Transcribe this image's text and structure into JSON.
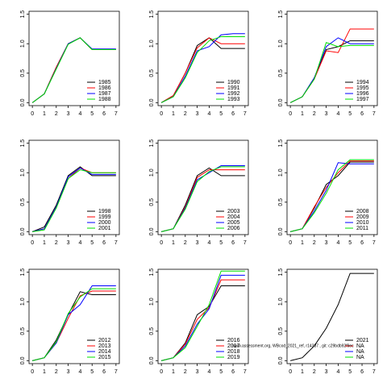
{
  "chart_data": [
    {
      "type": "line",
      "x": [
        0,
        1,
        2,
        3,
        4,
        5,
        6,
        7
      ],
      "xlim": [
        -0.28,
        7.28
      ],
      "ylim": [
        -0.05,
        1.55
      ],
      "xticks": [
        0,
        1,
        2,
        3,
        4,
        5,
        6,
        7
      ],
      "yticks": [
        {
          "value": 0,
          "label": "0.0"
        },
        0.5,
        {
          "value": 1,
          "label": "1.0"
        },
        1.5
      ],
      "legend": "bottomright",
      "series": [
        {
          "name": "1985",
          "color": "#000000",
          "values": [
            0,
            0.15,
            0.6,
            1.0,
            1.1,
            0.9,
            0.9,
            0.9
          ]
        },
        {
          "name": "1986",
          "color": "#ff0000",
          "values": [
            0,
            0.15,
            0.6,
            1.0,
            1.1,
            0.9,
            0.9,
            0.9
          ]
        },
        {
          "name": "1987",
          "color": "#0000ff",
          "values": [
            0,
            0.15,
            0.58,
            1.0,
            1.1,
            0.91,
            0.91,
            0.91
          ]
        },
        {
          "name": "1988",
          "color": "#00e000",
          "values": [
            0,
            0.15,
            0.57,
            0.99,
            1.1,
            0.9,
            0.9,
            0.9
          ]
        }
      ]
    },
    {
      "type": "line",
      "x": [
        0,
        1,
        2,
        3,
        4,
        5,
        6,
        7
      ],
      "xlim": [
        -0.28,
        7.28
      ],
      "ylim": [
        -0.05,
        1.55
      ],
      "xticks": [
        0,
        1,
        2,
        3,
        4,
        5,
        6,
        7
      ],
      "yticks": [
        {
          "value": 0,
          "label": "0.0"
        },
        0.5,
        {
          "value": 1,
          "label": "1.0"
        },
        1.5
      ],
      "legend": "bottomright",
      "series": [
        {
          "name": "1990",
          "color": "#000000",
          "values": [
            0,
            0.12,
            0.5,
            0.97,
            1.1,
            0.92,
            0.92,
            0.92
          ]
        },
        {
          "name": "1991",
          "color": "#ff0000",
          "values": [
            0,
            0.12,
            0.5,
            0.93,
            1.1,
            1.0,
            1.0,
            1.0
          ]
        },
        {
          "name": "1992",
          "color": "#0000ff",
          "values": [
            0,
            0.1,
            0.45,
            0.88,
            0.95,
            1.15,
            1.17,
            1.17
          ]
        },
        {
          "name": "1993",
          "color": "#00e000",
          "values": [
            0,
            0.1,
            0.42,
            0.85,
            1.05,
            1.12,
            1.12,
            1.12
          ]
        }
      ]
    },
    {
      "type": "line",
      "x": [
        0,
        1,
        2,
        3,
        4,
        5,
        6,
        7
      ],
      "xlim": [
        -0.28,
        7.28
      ],
      "ylim": [
        -0.05,
        1.55
      ],
      "xticks": [
        0,
        1,
        2,
        3,
        4,
        5,
        6,
        7
      ],
      "yticks": [
        {
          "value": 0,
          "label": "0.0"
        },
        0.5,
        {
          "value": 1,
          "label": "1.0"
        },
        1.5
      ],
      "legend": "bottomright",
      "series": [
        {
          "name": "1994",
          "color": "#000000",
          "values": [
            0,
            0.1,
            0.42,
            0.9,
            0.95,
            1.05,
            1.05,
            1.05
          ]
        },
        {
          "name": "1995",
          "color": "#ff0000",
          "values": [
            0,
            0.1,
            0.4,
            0.88,
            0.85,
            1.25,
            1.25,
            1.25
          ]
        },
        {
          "name": "1996",
          "color": "#0000ff",
          "values": [
            0,
            0.1,
            0.42,
            0.95,
            1.1,
            1.0,
            1.0,
            1.0
          ]
        },
        {
          "name": "1997",
          "color": "#00e000",
          "values": [
            0,
            0.1,
            0.4,
            1.02,
            0.95,
            0.97,
            0.97,
            0.97
          ]
        }
      ]
    },
    {
      "type": "line",
      "x": [
        0,
        1,
        2,
        3,
        4,
        5,
        6,
        7
      ],
      "xlim": [
        -0.28,
        7.28
      ],
      "ylim": [
        -0.05,
        1.55
      ],
      "xticks": [
        0,
        1,
        2,
        3,
        4,
        5,
        6,
        7
      ],
      "yticks": [
        {
          "value": 0,
          "label": "0.0"
        },
        0.5,
        {
          "value": 1,
          "label": "1.0"
        },
        1.5
      ],
      "legend": "bottomright",
      "series": [
        {
          "name": "1998",
          "color": "#000000",
          "values": [
            0,
            0.08,
            0.45,
            0.95,
            1.1,
            0.95,
            0.95,
            0.95
          ]
        },
        {
          "name": "1999",
          "color": "#ff0000",
          "values": [
            0,
            0.05,
            0.42,
            0.9,
            1.08,
            1.0,
            1.0,
            1.0
          ]
        },
        {
          "name": "2000",
          "color": "#0000ff",
          "values": [
            0,
            0.05,
            0.42,
            0.93,
            1.08,
            0.97,
            0.97,
            0.97
          ]
        },
        {
          "name": "2001",
          "color": "#00e000",
          "values": [
            0,
            0.03,
            0.4,
            0.9,
            1.05,
            1.0,
            1.0,
            1.0
          ]
        }
      ]
    },
    {
      "type": "line",
      "x": [
        0,
        1,
        2,
        3,
        4,
        5,
        6,
        7
      ],
      "xlim": [
        -0.28,
        7.28
      ],
      "ylim": [
        -0.05,
        1.55
      ],
      "xticks": [
        0,
        1,
        2,
        3,
        4,
        5,
        6,
        7
      ],
      "yticks": [
        {
          "value": 0,
          "label": "0.0"
        },
        0.5,
        {
          "value": 1,
          "label": "1.0"
        },
        1.5
      ],
      "legend": "bottomright",
      "series": [
        {
          "name": "2003",
          "color": "#000000",
          "values": [
            0,
            0.05,
            0.45,
            0.95,
            1.08,
            0.95,
            0.95,
            0.95
          ]
        },
        {
          "name": "2004",
          "color": "#ff0000",
          "values": [
            0,
            0.05,
            0.42,
            0.92,
            1.05,
            1.05,
            1.05,
            1.05
          ]
        },
        {
          "name": "2005",
          "color": "#0000ff",
          "values": [
            0,
            0.05,
            0.4,
            0.88,
            1.0,
            1.12,
            1.12,
            1.12
          ]
        },
        {
          "name": "2006",
          "color": "#00e000",
          "values": [
            0,
            0.05,
            0.38,
            0.85,
            1.02,
            1.1,
            1.1,
            1.1
          ]
        }
      ]
    },
    {
      "type": "line",
      "x": [
        0,
        1,
        2,
        3,
        4,
        5,
        6,
        7
      ],
      "xlim": [
        -0.28,
        7.28
      ],
      "ylim": [
        -0.05,
        1.55
      ],
      "xticks": [
        0,
        1,
        2,
        3,
        4,
        5,
        6,
        7
      ],
      "yticks": [
        {
          "value": 0,
          "label": "0.0"
        },
        0.5,
        {
          "value": 1,
          "label": "1.0"
        },
        1.5
      ],
      "legend": "bottomright",
      "series": [
        {
          "name": "2008",
          "color": "#000000",
          "values": [
            0,
            0.05,
            0.4,
            0.8,
            0.95,
            1.18,
            1.18,
            1.18
          ]
        },
        {
          "name": "2009",
          "color": "#ff0000",
          "values": [
            0,
            0.05,
            0.42,
            0.75,
            1.0,
            1.2,
            1.2,
            1.2
          ]
        },
        {
          "name": "2010",
          "color": "#0000ff",
          "values": [
            0,
            0.05,
            0.35,
            0.7,
            1.17,
            1.15,
            1.15,
            1.15
          ]
        },
        {
          "name": "2011",
          "color": "#00e000",
          "values": [
            0,
            0.05,
            0.32,
            0.65,
            1.05,
            1.22,
            1.22,
            1.22
          ]
        }
      ]
    },
    {
      "type": "line",
      "x": [
        0,
        1,
        2,
        3,
        4,
        5,
        6,
        7
      ],
      "xlim": [
        -0.28,
        7.28
      ],
      "ylim": [
        -0.05,
        1.55
      ],
      "xticks": [
        0,
        1,
        2,
        3,
        4,
        5,
        6,
        7
      ],
      "yticks": [
        {
          "value": 0,
          "label": "0.0"
        },
        0.5,
        {
          "value": 1,
          "label": "1.0"
        },
        1.5
      ],
      "legend": "bottomright",
      "series": [
        {
          "name": "2012",
          "color": "#000000",
          "values": [
            0,
            0.05,
            0.35,
            0.78,
            1.17,
            1.12,
            1.12,
            1.12
          ]
        },
        {
          "name": "2013",
          "color": "#ff0000",
          "values": [
            0,
            0.05,
            0.3,
            0.72,
            1.1,
            1.18,
            1.18,
            1.18
          ]
        },
        {
          "name": "2014",
          "color": "#0000ff",
          "values": [
            0,
            0.05,
            0.3,
            0.78,
            0.95,
            1.27,
            1.27,
            1.27
          ]
        },
        {
          "name": "2015",
          "color": "#00e000",
          "values": [
            0,
            0.05,
            0.32,
            0.8,
            1.08,
            1.22,
            1.22,
            1.22
          ]
        }
      ]
    },
    {
      "type": "line",
      "x": [
        0,
        1,
        2,
        3,
        4,
        5,
        6,
        7
      ],
      "xlim": [
        -0.28,
        7.28
      ],
      "ylim": [
        -0.05,
        1.55
      ],
      "xticks": [
        0,
        1,
        2,
        3,
        4,
        5,
        6,
        7
      ],
      "yticks": [
        {
          "value": 0,
          "label": "0.0"
        },
        0.5,
        {
          "value": 1,
          "label": "1.0"
        },
        1.5
      ],
      "legend": "bottomright",
      "series": [
        {
          "name": "2016",
          "color": "#000000",
          "values": [
            0,
            0.05,
            0.3,
            0.78,
            0.92,
            1.27,
            1.27,
            1.27
          ]
        },
        {
          "name": "2017",
          "color": "#ff0000",
          "values": [
            0,
            0.05,
            0.28,
            0.7,
            0.9,
            1.37,
            1.37,
            1.37
          ]
        },
        {
          "name": "2018",
          "color": "#0000ff",
          "values": [
            0,
            0.05,
            0.25,
            0.62,
            0.88,
            1.45,
            1.45,
            1.45
          ]
        },
        {
          "name": "2019",
          "color": "#00e000",
          "values": [
            0,
            0.05,
            0.22,
            0.58,
            0.95,
            1.52,
            1.52,
            1.52
          ]
        }
      ]
    },
    {
      "type": "line",
      "x": [
        0,
        1,
        2,
        3,
        4,
        5,
        6,
        7
      ],
      "xlim": [
        -0.28,
        7.28
      ],
      "ylim": [
        -0.05,
        1.55
      ],
      "xticks": [
        0,
        1,
        2,
        3,
        4,
        5,
        6,
        7
      ],
      "yticks": [
        {
          "value": 0,
          "label": "0.0"
        },
        0.5,
        {
          "value": 1,
          "label": "1.0"
        },
        1.5
      ],
      "legend": "bottomright",
      "annotation": "www.assessment.org, WBcod_2021_ref, r14387 , git: c29bdb92f9ec",
      "series": [
        {
          "name": "2021",
          "color": "#000000",
          "values": [
            0,
            0.05,
            0.25,
            0.55,
            0.95,
            1.48,
            1.48,
            1.48
          ]
        },
        {
          "name": "NA",
          "color": "#ff0000",
          "values": [
            null,
            null,
            null,
            null,
            null,
            null,
            null,
            null
          ]
        },
        {
          "name": "NA",
          "color": "#0000ff",
          "values": [
            null,
            null,
            null,
            null,
            null,
            null,
            null,
            null
          ]
        },
        {
          "name": "NA",
          "color": "#00e000",
          "values": [
            null,
            null,
            null,
            null,
            null,
            null,
            null,
            null
          ]
        }
      ]
    }
  ]
}
